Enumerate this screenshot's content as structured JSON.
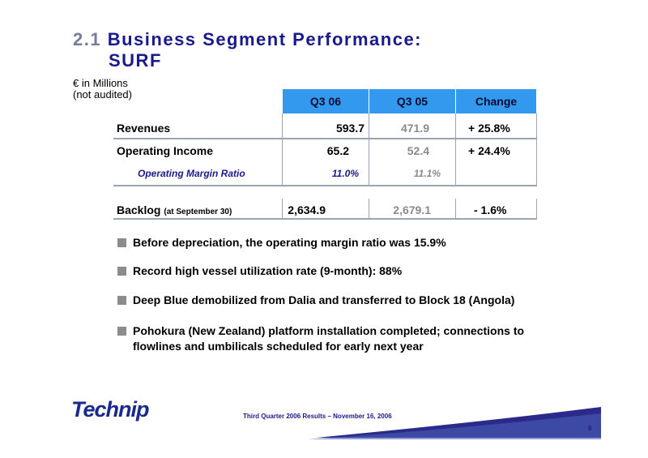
{
  "title": {
    "number": "2.1",
    "line1": "Business Segment Performance:",
    "line2": "SURF"
  },
  "units": {
    "line1": "€ in Millions",
    "line2": "(not audited)"
  },
  "table": {
    "headers": [
      "Q3 06",
      "Q3 05",
      "Change"
    ],
    "revenues": {
      "label": "Revenues",
      "q306": "593.7",
      "q305": "471.9",
      "change": "+ 25.8%"
    },
    "operating_income": {
      "label": "Operating Income",
      "q306": "65.2",
      "q305": "52.4",
      "change": "+ 24.4%"
    },
    "operating_margin": {
      "label": "Operating Margin Ratio",
      "q306": "11.0%",
      "q305": "11.1%"
    },
    "backlog": {
      "label": "Backlog",
      "label_note": "(at September 30)",
      "q306": "2,634.9",
      "q305": "2,679.1",
      "change": "-  1.6%"
    }
  },
  "bullets": [
    "Before depreciation, the operating margin ratio was 15.9%",
    "Record high vessel utilization rate (9-month): 88%",
    "Deep Blue demobilized from Dalia and transferred to Block 18 (Angola)",
    "Pohokura (New Zealand) platform installation completed; connections to flowlines and umbilicals scheduled for early next year"
  ],
  "logo": {
    "text": "Technip"
  },
  "footer": {
    "text": "Third Quarter 2006 Results – November 16, 2006",
    "page": "6"
  },
  "colors": {
    "header_bg": "#3399ee",
    "title": "#1a1a8c",
    "prior_year": "#8a8a8a"
  }
}
